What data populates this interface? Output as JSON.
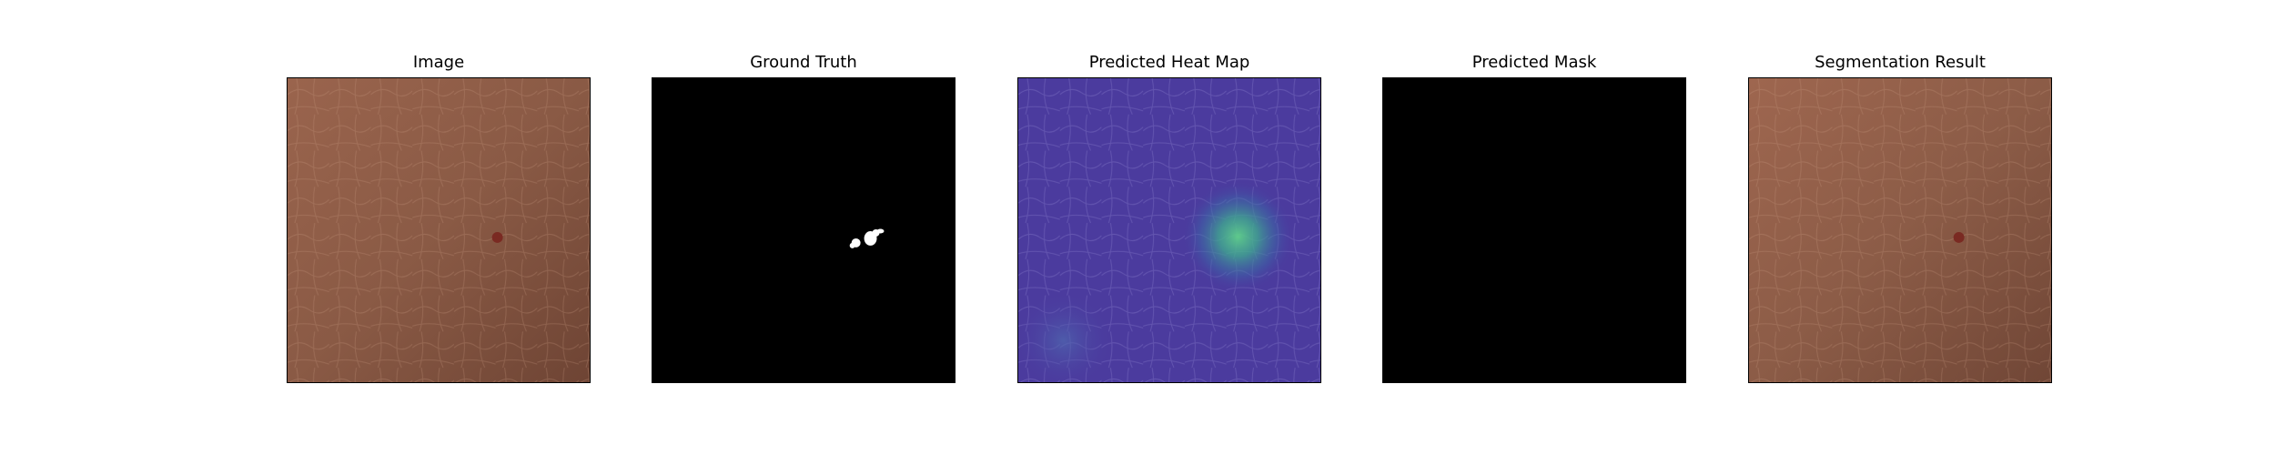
{
  "figure": {
    "panels": [
      {
        "title": "Image"
      },
      {
        "title": "Ground Truth"
      },
      {
        "title": "Predicted Heat Map"
      },
      {
        "title": "Predicted Mask"
      },
      {
        "title": "Segmentation Result"
      }
    ]
  },
  "colors": {
    "leather_base": "#8a5a45",
    "leather_light": "#a06a52",
    "leather_dark": "#6e4434",
    "defect_spot": "#7a2a22",
    "mask_background": "#000000",
    "mask_foreground": "#ffffff",
    "heatmap_base": "#4a3aa0",
    "heatmap_hot": "#56c88a"
  }
}
